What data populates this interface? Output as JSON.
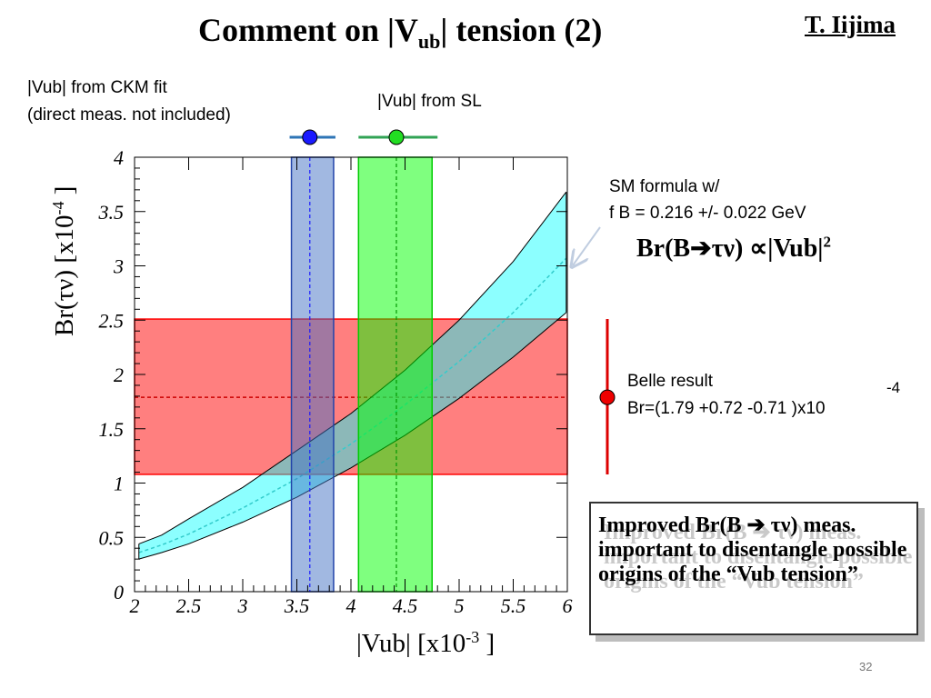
{
  "slide": {
    "title_main": "Comment on |V",
    "title_sub": "ub",
    "title_rest": "| tension (2)",
    "author": "T. Iijima",
    "page_number": "32"
  },
  "notes": {
    "ckm_fit_line1": "|Vub| from CKM fit",
    "ckm_fit_line2": "(direct meas. not included)",
    "sl": "|Vub| from SL",
    "sm_line1": "SM formula w/",
    "sm_line2": "f B = 0.216 +/- 0.022 GeV",
    "formula_main": "Br(B➔τν) ∝|Vub|",
    "formula_exp": "2",
    "belle_line1": "Belle result",
    "belle_line2": "Br=(1.79 +0.72 -0.71 )x10",
    "belle_exp": "-4"
  },
  "callout": {
    "text": "Improved Br(B ➔ τν) meas. important to disentangle possible origins of the “Vub tension”"
  },
  "colors": {
    "ckm_band": "#4472c4",
    "sl_band": "#00ff00",
    "belle_band": "#ff0000",
    "sm_band": "#00ffff",
    "ckm_marker": "#1a1aff",
    "sl_marker": "#22dd22"
  },
  "chart_data": {
    "type": "area",
    "xlabel": "|Vub| [x10",
    "xlabel_exp": "-3",
    "xlabel_end": " ]",
    "ylabel": "Br(τν) [x10",
    "ylabel_exp": "-4",
    "ylabel_end": " ]",
    "xlim": [
      2,
      6
    ],
    "ylim": [
      0,
      4
    ],
    "x_ticks": [
      2,
      2.5,
      3,
      3.5,
      4,
      4.5,
      5,
      5.5,
      6
    ],
    "x_tick_labels": [
      "2",
      "2.5",
      "3",
      "3.5",
      "4",
      "4.5",
      "5",
      "5.5",
      "6"
    ],
    "y_ticks": [
      0,
      0.5,
      1,
      1.5,
      2,
      2.5,
      3,
      3.5,
      4
    ],
    "y_tick_labels": [
      "0",
      "0.5",
      "1",
      "1.5",
      "2",
      "2.5",
      "3",
      "3.5",
      "4"
    ],
    "sm_band": {
      "x": [
        2.04,
        2.25,
        2.5,
        3.0,
        3.5,
        4.0,
        4.5,
        5.0,
        5.5,
        5.99
      ],
      "upper": [
        0.44,
        0.52,
        0.67,
        0.96,
        1.3,
        1.64,
        2.04,
        2.5,
        3.04,
        3.68
      ],
      "central": [
        0.36,
        0.43,
        0.53,
        0.77,
        1.04,
        1.36,
        1.72,
        2.12,
        2.57,
        3.07
      ],
      "lower": [
        0.3,
        0.36,
        0.44,
        0.64,
        0.87,
        1.14,
        1.44,
        1.78,
        2.16,
        2.57
      ]
    },
    "ckm_fit": {
      "central": 3.62,
      "low": 3.45,
      "high": 3.84
    },
    "sl": {
      "central": 4.42,
      "low": 4.07,
      "high": 4.75
    },
    "belle": {
      "central": 1.79,
      "low": 1.08,
      "high": 2.51
    }
  }
}
